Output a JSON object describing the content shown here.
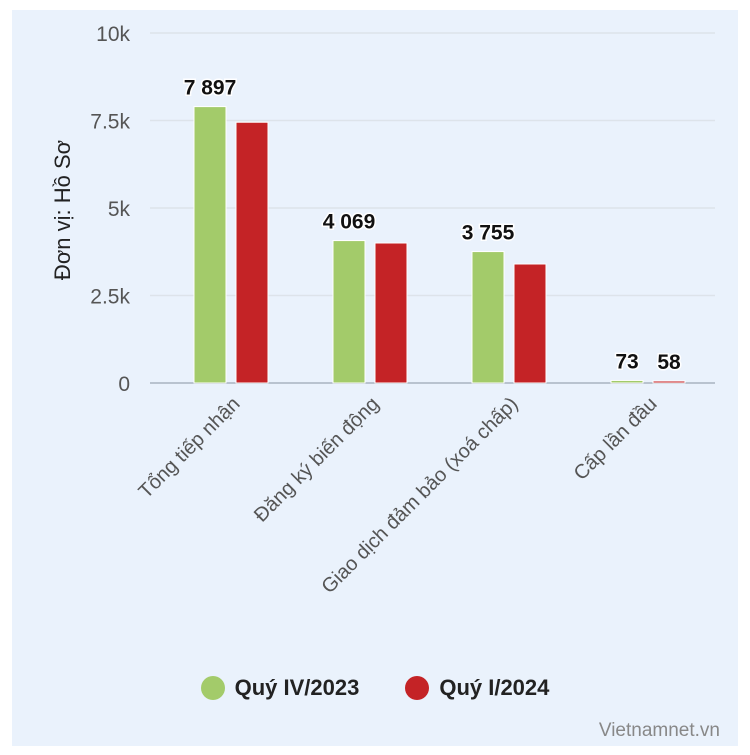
{
  "chart_data": {
    "type": "bar",
    "ylabel": "Đơn vị: Hồ Sơ",
    "ylim": [
      0,
      10000
    ],
    "yticks": [
      0,
      2500,
      5000,
      7500,
      10000
    ],
    "ytick_labels": [
      "0",
      "2.5k",
      "5k",
      "7.5k",
      "10k"
    ],
    "categories": [
      "Tổng tiếp nhận",
      "Đăng ký biến động",
      "Giao dịch đảm bảo (xoá chấp)",
      "Cấp lần đầu"
    ],
    "series": [
      {
        "name": "Quý IV/2023",
        "color": "#a3cb6a",
        "values": [
          7897,
          4069,
          3755,
          73
        ]
      },
      {
        "name": "Quý I/2024",
        "color": "#c42326",
        "values": [
          7450,
          4000,
          3400,
          58
        ]
      }
    ],
    "data_labels": [
      {
        "category_index": 0,
        "series_index": 0,
        "text": "7 897"
      },
      {
        "category_index": 1,
        "series_index": 0,
        "text": "4 069"
      },
      {
        "category_index": 2,
        "series_index": 0,
        "text": "3 755"
      },
      {
        "category_index": 3,
        "series_index": 0,
        "text": "73"
      },
      {
        "category_index": 3,
        "series_index": 1,
        "text": "58"
      }
    ],
    "grid": true,
    "legend": "bottom"
  },
  "source": "Vietnamnet.vn"
}
